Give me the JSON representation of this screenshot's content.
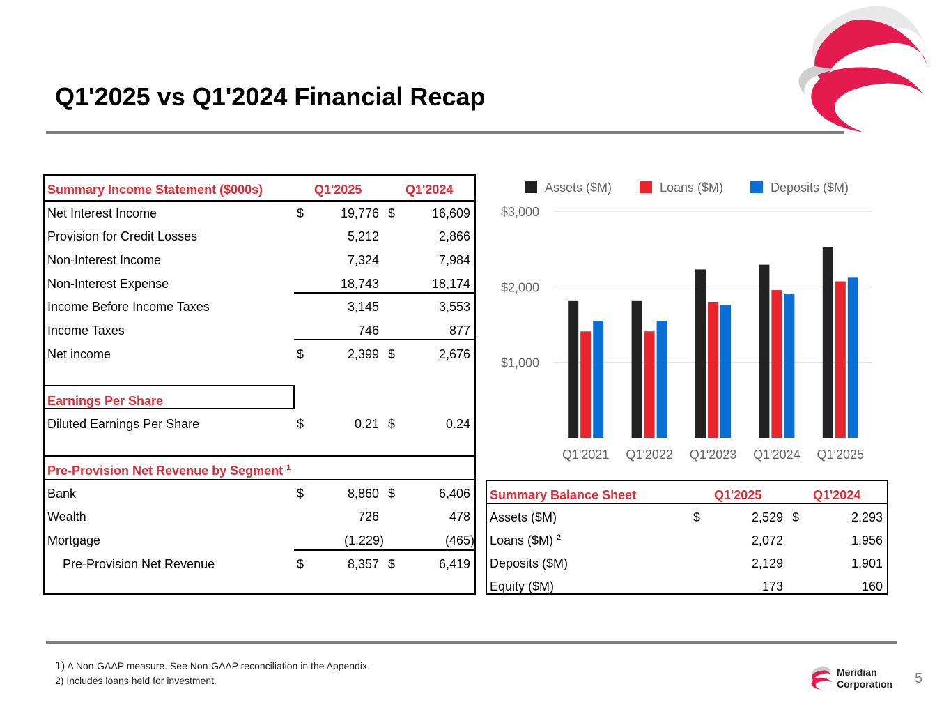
{
  "title": "Q1'2025 vs Q1'2024 Financial Recap",
  "colors": {
    "accent_red": "#e02a36",
    "assets": "#222222",
    "loans": "#e8252d",
    "deposits": "#0a6fd4",
    "rule": "#7f7f7f"
  },
  "icons": {
    "brand_logo": "swirl-logo-icon"
  },
  "income": {
    "header": {
      "label": "Summary Income Statement ($000s)",
      "col1": "Q1'2025",
      "col2": "Q1'2024"
    },
    "rows": [
      {
        "label": "Net Interest Income",
        "d1": "$",
        "v1": "19,776",
        "d2": "$",
        "v2": "16,609"
      },
      {
        "label": "Provision for Credit Losses",
        "d1": "",
        "v1": "5,212",
        "d2": "",
        "v2": "2,866"
      },
      {
        "label": "Non-Interest Income",
        "d1": "",
        "v1": "7,324",
        "d2": "",
        "v2": "7,984"
      },
      {
        "label": "Non-Interest Expense",
        "d1": "",
        "v1": "18,743",
        "d2": "",
        "v2": "18,174"
      },
      {
        "label": "Income Before Income Taxes",
        "d1": "",
        "v1": "3,145",
        "d2": "",
        "v2": "3,553"
      },
      {
        "label": "Income Taxes",
        "d1": "",
        "v1": "746",
        "d2": "",
        "v2": "877"
      },
      {
        "label": "Net income",
        "d1": "$",
        "v1": "2,399",
        "d2": "$",
        "v2": "2,676"
      }
    ],
    "eps_header": "Earnings Per Share",
    "eps_row": {
      "label": "Diluted Earnings Per Share",
      "d1": "$",
      "v1": "0.21",
      "d2": "$",
      "v2": "0.24"
    },
    "ppnr_header": "Pre-Provision Net Revenue by Segment",
    "ppnr_sup": "1",
    "ppnr_rows": [
      {
        "label": "Bank",
        "d1": "$",
        "v1": "8,860",
        "d2": "$",
        "v2": "6,406"
      },
      {
        "label": "Wealth",
        "d1": "",
        "v1": "726",
        "d2": "",
        "v2": "478"
      },
      {
        "label": "Mortgage",
        "d1": "",
        "v1": "(1,229)",
        "d2": "",
        "v2": "(465)"
      },
      {
        "label": "Pre-Provision Net Revenue",
        "d1": "$",
        "v1": "8,357",
        "d2": "$",
        "v2": "6,419"
      }
    ]
  },
  "balance": {
    "header": {
      "label": "Summary Balance Sheet",
      "col1": "Q1'2025",
      "col2": "Q1'2024"
    },
    "rows": [
      {
        "label": "Assets ($M)",
        "sup": "",
        "d1": "$",
        "v1": "2,529",
        "d2": "$",
        "v2": "2,293"
      },
      {
        "label": "Loans ($M)",
        "sup": "2",
        "d1": "",
        "v1": "2,072",
        "d2": "",
        "v2": "1,956"
      },
      {
        "label": "Deposits ($M)",
        "sup": "",
        "d1": "",
        "v1": "2,129",
        "d2": "",
        "v2": "1,901"
      },
      {
        "label": "Equity ($M)",
        "sup": "",
        "d1": "",
        "v1": "173",
        "d2": "",
        "v2": "160"
      }
    ]
  },
  "chart_data": {
    "type": "bar",
    "categories": [
      "Q1'2021",
      "Q1'2022",
      "Q1'2023",
      "Q1'2024",
      "Q1'2025"
    ],
    "series": [
      {
        "name": "Assets ($M)",
        "values": [
          1820,
          1820,
          2230,
          2293,
          2529
        ]
      },
      {
        "name": "Loans ($M)",
        "values": [
          1410,
          1410,
          1800,
          1956,
          2072
        ]
      },
      {
        "name": "Deposits ($M)",
        "values": [
          1550,
          1550,
          1760,
          1901,
          2129
        ]
      }
    ],
    "ylim": [
      0,
      3000
    ],
    "yticks": [
      1000,
      2000,
      3000
    ],
    "ytick_labels": [
      "$1,000",
      "$2,000",
      "$3,000"
    ],
    "legend": "top",
    "grid": true
  },
  "footnotes": {
    "n1_num": "1)",
    "n1_text": "A Non-GAAP measure. See Non-GAAP reconciliation in the Appendix.",
    "n2": "2) Includes loans held for investment."
  },
  "company": {
    "line1": "Meridian",
    "line2": "Corporation"
  },
  "page_number": "5"
}
